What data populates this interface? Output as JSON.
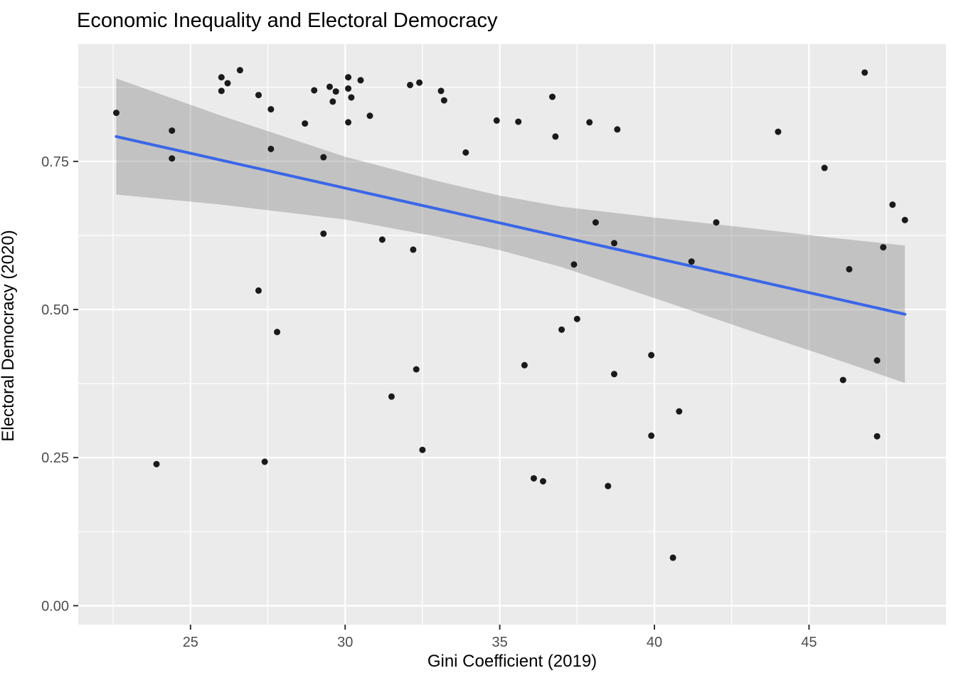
{
  "chart_data": {
    "type": "scatter",
    "title": "Economic Inequality and Electoral Democracy",
    "xlabel": "Gini Coefficient (2019)",
    "ylabel": "Electoral Democracy (2020)",
    "x_domain": [
      21.37,
      49.43
    ],
    "y_domain": [
      -0.032,
      0.948
    ],
    "x_ticks": [
      {
        "value": 25,
        "label": "25"
      },
      {
        "value": 30,
        "label": "30"
      },
      {
        "value": 35,
        "label": "35"
      },
      {
        "value": 40,
        "label": "40"
      },
      {
        "value": 45,
        "label": "45"
      }
    ],
    "y_ticks": [
      {
        "value": 0.0,
        "label": "0.00"
      },
      {
        "value": 0.25,
        "label": "0.25"
      },
      {
        "value": 0.5,
        "label": "0.50"
      },
      {
        "value": 0.75,
        "label": "0.75"
      }
    ],
    "x_minor_gridlines": [
      22.5,
      27.5,
      32.5,
      37.5,
      42.5,
      47.5
    ],
    "y_minor_gridlines": [
      0.125,
      0.375,
      0.625,
      0.875
    ],
    "grid": true,
    "legend": "none",
    "points": [
      [
        22.6,
        0.832
      ],
      [
        24.4,
        0.802
      ],
      [
        24.4,
        0.755
      ],
      [
        23.9,
        0.239
      ],
      [
        26.0,
        0.892
      ],
      [
        26.2,
        0.882
      ],
      [
        26.0,
        0.869
      ],
      [
        26.6,
        0.904
      ],
      [
        27.2,
        0.862
      ],
      [
        27.6,
        0.838
      ],
      [
        27.2,
        0.532
      ],
      [
        27.4,
        0.243
      ],
      [
        27.6,
        0.771
      ],
      [
        27.8,
        0.462
      ],
      [
        28.7,
        0.814
      ],
      [
        29.0,
        0.87
      ],
      [
        29.3,
        0.757
      ],
      [
        29.3,
        0.628
      ],
      [
        29.5,
        0.876
      ],
      [
        29.7,
        0.868
      ],
      [
        29.6,
        0.851
      ],
      [
        30.1,
        0.892
      ],
      [
        30.5,
        0.887
      ],
      [
        30.1,
        0.873
      ],
      [
        30.2,
        0.858
      ],
      [
        30.1,
        0.816
      ],
      [
        30.8,
        0.827
      ],
      [
        32.1,
        0.879
      ],
      [
        32.4,
        0.883
      ],
      [
        33.1,
        0.869
      ],
      [
        33.2,
        0.853
      ],
      [
        34.9,
        0.819
      ],
      [
        35.6,
        0.817
      ],
      [
        36.7,
        0.859
      ],
      [
        36.8,
        0.792
      ],
      [
        37.9,
        0.816
      ],
      [
        38.8,
        0.804
      ],
      [
        33.9,
        0.765
      ],
      [
        31.2,
        0.618
      ],
      [
        32.2,
        0.601
      ],
      [
        38.1,
        0.647
      ],
      [
        38.7,
        0.612
      ],
      [
        37.4,
        0.576
      ],
      [
        37.5,
        0.484
      ],
      [
        37.0,
        0.466
      ],
      [
        32.3,
        0.399
      ],
      [
        31.5,
        0.353
      ],
      [
        32.5,
        0.263
      ],
      [
        35.8,
        0.406
      ],
      [
        38.7,
        0.391
      ],
      [
        39.9,
        0.423
      ],
      [
        39.9,
        0.287
      ],
      [
        36.1,
        0.215
      ],
      [
        36.4,
        0.21
      ],
      [
        38.5,
        0.202
      ],
      [
        46.8,
        0.9
      ],
      [
        44.0,
        0.8
      ],
      [
        45.5,
        0.739
      ],
      [
        47.7,
        0.677
      ],
      [
        48.1,
        0.651
      ],
      [
        42.0,
        0.647
      ],
      [
        41.2,
        0.581
      ],
      [
        47.4,
        0.605
      ],
      [
        46.3,
        0.568
      ],
      [
        47.2,
        0.414
      ],
      [
        46.1,
        0.381
      ],
      [
        40.8,
        0.328
      ],
      [
        47.2,
        0.286
      ],
      [
        40.6,
        0.081
      ]
    ],
    "trend_line": {
      "type": "linear",
      "x": [
        22.6,
        48.1
      ],
      "y": [
        0.792,
        0.492
      ]
    },
    "confidence_band": [
      {
        "x": 22.6,
        "half_width": 0.098
      },
      {
        "x": 26.0,
        "half_width": 0.075
      },
      {
        "x": 30.0,
        "half_width": 0.053
      },
      {
        "x": 33.0,
        "half_width": 0.047
      },
      {
        "x": 35.0,
        "half_width": 0.046
      },
      {
        "x": 37.0,
        "half_width": 0.051
      },
      {
        "x": 40.0,
        "half_width": 0.068
      },
      {
        "x": 43.0,
        "half_width": 0.086
      },
      {
        "x": 45.5,
        "half_width": 0.1
      },
      {
        "x": 48.1,
        "half_width": 0.116
      }
    ],
    "colors": {
      "panel_background": "#EBEBEB",
      "gridline": "#FFFFFF",
      "point": "#1A1A1A",
      "trend_line": "#3A66E8",
      "confidence_band": "rgba(128,128,128,0.38)",
      "tick_label": "#4D4D4D",
      "tick_mark": "#333333",
      "title_text": "#000000"
    }
  }
}
